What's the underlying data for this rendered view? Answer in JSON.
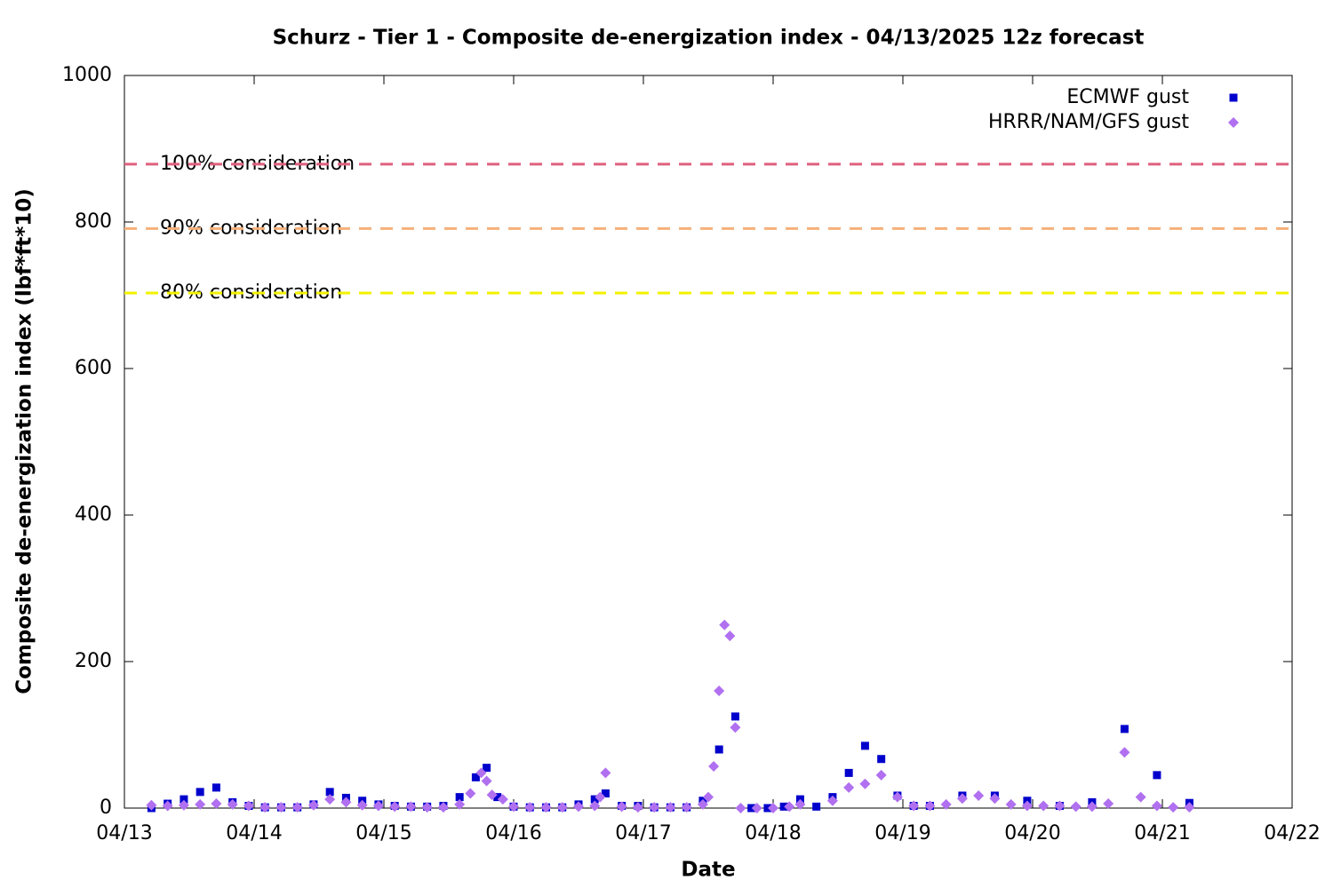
{
  "chart_data": {
    "type": "scatter",
    "title": "Schurz - Tier 1 - Composite de-energization index - 04/13/2025 12z forecast",
    "x_label": "Date",
    "y_label": "Composite de-energization index (lbf*ft*10)",
    "xlim": [
      "04/13",
      "04/22"
    ],
    "xticks": [
      "04/13",
      "04/14",
      "04/15",
      "04/16",
      "04/17",
      "04/18",
      "04/19",
      "04/20",
      "04/21",
      "04/22"
    ],
    "ylim": [
      0,
      1000
    ],
    "yticks": [
      0,
      200,
      400,
      600,
      800,
      1000
    ],
    "legend": "top-right",
    "thresholds": [
      {
        "label": "100% consideration",
        "value": 879,
        "color": "#e0607e"
      },
      {
        "label": "90% consideration",
        "value": 791,
        "color": "#f5b07a"
      },
      {
        "label": "80% consideration",
        "value": 703,
        "color": "#f2f200"
      }
    ],
    "series": [
      {
        "name": "ECMWF gust",
        "color": "#0000cc",
        "marker": "square",
        "x": [
          "04/13 05:00",
          "04/13 08:00",
          "04/13 11:00",
          "04/13 14:00",
          "04/13 17:00",
          "04/13 20:00",
          "04/13 23:00",
          "04/14 02:00",
          "04/14 05:00",
          "04/14 08:00",
          "04/14 11:00",
          "04/14 14:00",
          "04/14 17:00",
          "04/14 20:00",
          "04/14 23:00",
          "04/15 02:00",
          "04/15 05:00",
          "04/15 08:00",
          "04/15 11:00",
          "04/15 14:00",
          "04/15 17:00",
          "04/15 19:00",
          "04/15 21:00",
          "04/16 00:00",
          "04/16 03:00",
          "04/16 06:00",
          "04/16 09:00",
          "04/16 12:00",
          "04/16 15:00",
          "04/16 17:00",
          "04/16 20:00",
          "04/16 23:00",
          "04/17 02:00",
          "04/17 05:00",
          "04/17 08:00",
          "04/17 11:00",
          "04/17 14:00",
          "04/17 17:00",
          "04/17 20:00",
          "04/17 23:00",
          "04/18 02:00",
          "04/18 05:00",
          "04/18 08:00",
          "04/18 11:00",
          "04/18 14:00",
          "04/18 17:00",
          "04/18 20:00",
          "04/18 23:00",
          "04/19 02:00",
          "04/19 05:00",
          "04/19 11:00",
          "04/19 17:00",
          "04/19 23:00",
          "04/20 05:00",
          "04/20 11:00",
          "04/20 17:00",
          "04/20 23:00",
          "04/21 05:00"
        ],
        "values": [
          0,
          6,
          12,
          22,
          28,
          8,
          3,
          1,
          1,
          1,
          5,
          22,
          14,
          10,
          5,
          3,
          2,
          2,
          3,
          15,
          42,
          55,
          15,
          2,
          1,
          1,
          1,
          5,
          12,
          20,
          3,
          3,
          1,
          1,
          1,
          10,
          80,
          125,
          0,
          0,
          2,
          12,
          2,
          15,
          48,
          85,
          67,
          17,
          3,
          3,
          17,
          17,
          10,
          3,
          8,
          108,
          45,
          7
        ]
      },
      {
        "name": "HRRR/NAM/GFS gust",
        "color": "#b070f0",
        "marker": "diamond",
        "x": [
          "04/13 05:00",
          "04/13 08:00",
          "04/13 11:00",
          "04/13 14:00",
          "04/13 17:00",
          "04/13 20:00",
          "04/13 23:00",
          "04/14 02:00",
          "04/14 05:00",
          "04/14 08:00",
          "04/14 11:00",
          "04/14 14:00",
          "04/14 17:00",
          "04/14 20:00",
          "04/14 23:00",
          "04/15 02:00",
          "04/15 05:00",
          "04/15 08:00",
          "04/15 11:00",
          "04/15 14:00",
          "04/15 16:00",
          "04/15 18:00",
          "04/15 19:00",
          "04/15 20:00",
          "04/15 22:00",
          "04/16 00:00",
          "04/16 03:00",
          "04/16 06:00",
          "04/16 09:00",
          "04/16 12:00",
          "04/16 15:00",
          "04/16 16:00",
          "04/16 17:00",
          "04/16 20:00",
          "04/16 23:00",
          "04/17 02:00",
          "04/17 05:00",
          "04/17 08:00",
          "04/17 11:00",
          "04/17 12:00",
          "04/17 13:00",
          "04/17 14:00",
          "04/17 15:00",
          "04/17 16:00",
          "04/17 17:00",
          "04/17 18:00",
          "04/17 21:00",
          "04/18 00:00",
          "04/18 03:00",
          "04/18 05:00",
          "04/18 11:00",
          "04/18 14:00",
          "04/18 17:00",
          "04/18 20:00",
          "04/18 23:00",
          "04/19 02:00",
          "04/19 05:00",
          "04/19 08:00",
          "04/19 11:00",
          "04/19 14:00",
          "04/19 17:00",
          "04/19 20:00",
          "04/19 23:00",
          "04/20 02:00",
          "04/20 05:00",
          "04/20 08:00",
          "04/20 11:00",
          "04/20 14:00",
          "04/20 17:00",
          "04/20 20:00",
          "04/20 23:00",
          "04/21 02:00",
          "04/21 05:00"
        ],
        "values": [
          4,
          3,
          4,
          5,
          6,
          5,
          3,
          1,
          1,
          1,
          4,
          12,
          8,
          4,
          3,
          2,
          2,
          1,
          1,
          5,
          20,
          48,
          37,
          18,
          12,
          2,
          1,
          1,
          1,
          2,
          3,
          15,
          48,
          2,
          1,
          1,
          1,
          1,
          5,
          15,
          57,
          160,
          250,
          235,
          110,
          0,
          0,
          0,
          2,
          5,
          10,
          28,
          33,
          45,
          15,
          3,
          3,
          5,
          13,
          17,
          13,
          5,
          3,
          3,
          3,
          2,
          2,
          6,
          76,
          15,
          3,
          1,
          1
        ]
      }
    ]
  }
}
